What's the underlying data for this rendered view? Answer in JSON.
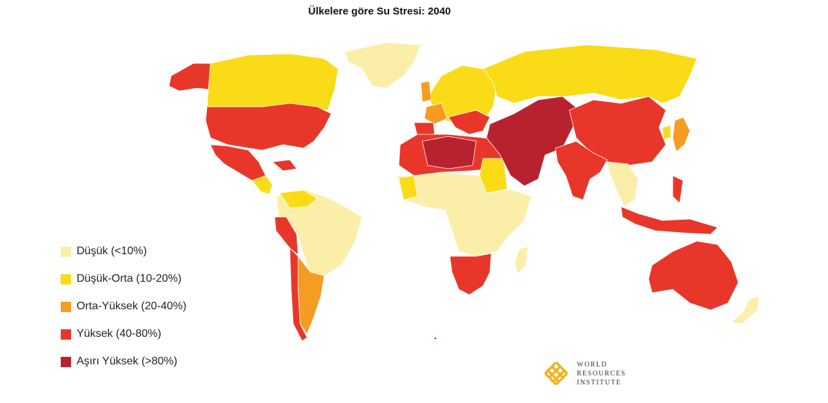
{
  "title": "Ülkelere göre Su Stresi: 2040",
  "legend": [
    {
      "label": "Düşük (<10%)",
      "color": "#fbeea8"
    },
    {
      "label": "Düşük-Orta (10-20%)",
      "color": "#f9dc17"
    },
    {
      "label": "Orta-Yüksek (20-40%)",
      "color": "#f59c22"
    },
    {
      "label": "Yüksek (40-80%)",
      "color": "#e8372a"
    },
    {
      "label": "Aşırı Yüksek (>80%)",
      "color": "#b8222f"
    }
  ],
  "logo": {
    "line1": "WORLD",
    "line2": "RESOURCES",
    "line3": "INSTITUTE",
    "color": "#f2b21d"
  }
}
